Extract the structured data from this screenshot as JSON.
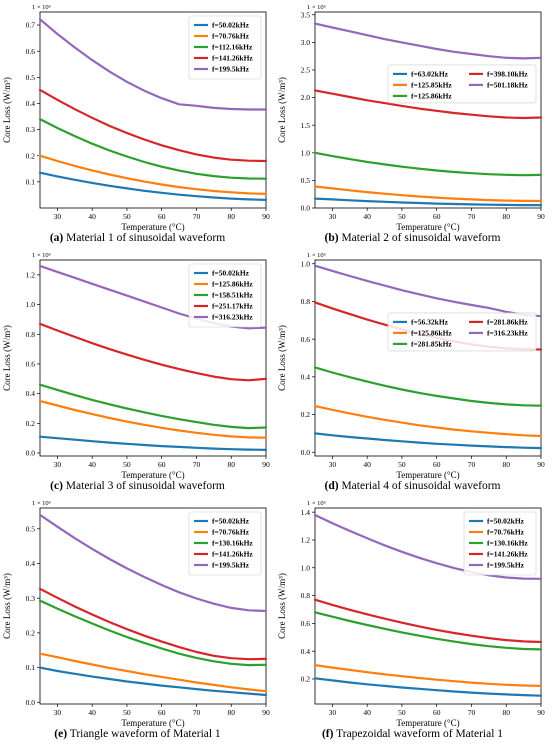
{
  "chart_data": [
    {
      "type": "line",
      "caption_tag": "(a)",
      "caption_text": "Material 1 of sinusoidal waveform",
      "xlabel": "Temperature (°C)",
      "ylabel": "Core Loss (W/m³)",
      "multiplier": "1 × 10⁶",
      "xlim": [
        25,
        90
      ],
      "ylim": [
        0,
        0.75
      ],
      "xticks": [
        30,
        40,
        50,
        60,
        70,
        80,
        90
      ],
      "yticks": [
        0.1,
        0.2,
        0.3,
        0.4,
        0.5,
        0.6,
        0.7
      ],
      "legend_position": "upper-right",
      "legend_cols": 1,
      "x": [
        25,
        30,
        35,
        40,
        45,
        50,
        55,
        60,
        65,
        70,
        75,
        80,
        85,
        90
      ],
      "series": [
        {
          "name": "f=50.02kHz",
          "color": "#1f77b4",
          "values": [
            0.135,
            0.121,
            0.108,
            0.096,
            0.085,
            0.075,
            0.066,
            0.058,
            0.051,
            0.045,
            0.04,
            0.036,
            0.033,
            0.031
          ]
        },
        {
          "name": "f=70.76kHz",
          "color": "#ff7f0e",
          "values": [
            0.2,
            0.18,
            0.161,
            0.144,
            0.128,
            0.114,
            0.101,
            0.09,
            0.08,
            0.072,
            0.065,
            0.06,
            0.056,
            0.054
          ]
        },
        {
          "name": "f=112.16kHz",
          "color": "#2ca02c",
          "values": [
            0.34,
            0.306,
            0.275,
            0.246,
            0.22,
            0.197,
            0.176,
            0.158,
            0.143,
            0.131,
            0.122,
            0.116,
            0.113,
            0.112
          ]
        },
        {
          "name": "f=141.26kHz",
          "color": "#d62728",
          "values": [
            0.452,
            0.414,
            0.378,
            0.345,
            0.314,
            0.287,
            0.262,
            0.24,
            0.221,
            0.205,
            0.193,
            0.185,
            0.181,
            0.18
          ]
        },
        {
          "name": "f=199.5kHz",
          "color": "#9467bd",
          "values": [
            0.722,
            0.666,
            0.614,
            0.566,
            0.522,
            0.483,
            0.449,
            0.42,
            0.397,
            0.391,
            0.383,
            0.379,
            0.377,
            0.377
          ]
        }
      ]
    },
    {
      "type": "line",
      "caption_tag": "(b)",
      "caption_text": "Material 2 of sinusoidal waveform",
      "xlabel": "Temperature (°C)",
      "ylabel": "Core Loss (W/m³)",
      "multiplier": "1 × 10⁶",
      "xlim": [
        25,
        90
      ],
      "ylim": [
        0,
        3.55
      ],
      "xticks": [
        30,
        40,
        50,
        60,
        70,
        80,
        90
      ],
      "yticks": [
        0.0,
        0.5,
        1.0,
        1.5,
        2.0,
        2.5,
        3.0,
        3.5
      ],
      "legend_position": "center-right",
      "legend_cols": 2,
      "x": [
        25,
        30,
        35,
        40,
        45,
        50,
        55,
        60,
        65,
        70,
        75,
        80,
        85,
        90
      ],
      "series": [
        {
          "name": "f=63.02kHz",
          "color": "#1f77b4",
          "values": [
            0.17,
            0.155,
            0.14,
            0.125,
            0.112,
            0.1,
            0.09,
            0.08,
            0.072,
            0.065,
            0.06,
            0.056,
            0.053,
            0.052
          ]
        },
        {
          "name": "f=125.85kHz",
          "color": "#ff7f0e",
          "values": [
            0.39,
            0.355,
            0.32,
            0.288,
            0.259,
            0.232,
            0.209,
            0.188,
            0.17,
            0.155,
            0.143,
            0.134,
            0.128,
            0.126
          ]
        },
        {
          "name": "f=125.86kHz",
          "color": "#2ca02c",
          "values": [
            1.0,
            0.94,
            0.885,
            0.835,
            0.789,
            0.748,
            0.712,
            0.68,
            0.652,
            0.63,
            0.613,
            0.601,
            0.594,
            0.6
          ]
        },
        {
          "name": "f=398.10kHz",
          "color": "#d62728",
          "values": [
            2.13,
            2.07,
            2.01,
            1.95,
            1.9,
            1.85,
            1.8,
            1.76,
            1.72,
            1.69,
            1.66,
            1.64,
            1.63,
            1.64
          ]
        },
        {
          "name": "f=501.18kHz",
          "color": "#9467bd",
          "values": [
            3.34,
            3.27,
            3.2,
            3.13,
            3.06,
            3.0,
            2.94,
            2.88,
            2.83,
            2.79,
            2.75,
            2.72,
            2.71,
            2.72
          ]
        }
      ]
    },
    {
      "type": "line",
      "caption_tag": "(c)",
      "caption_text": "Material 3 of sinusoidal waveform",
      "xlabel": "Temperature (°C)",
      "ylabel": "Core Loss (W/m³)",
      "multiplier": "1 × 10⁶",
      "xlim": [
        25,
        90
      ],
      "ylim": [
        -0.02,
        1.3
      ],
      "xticks": [
        30,
        40,
        50,
        60,
        70,
        80,
        90
      ],
      "yticks": [
        0.0,
        0.2,
        0.4,
        0.6,
        0.8,
        1.0,
        1.2
      ],
      "legend_position": "upper-right",
      "legend_cols": 1,
      "x": [
        25,
        30,
        35,
        40,
        45,
        50,
        55,
        60,
        65,
        70,
        75,
        80,
        85,
        90
      ],
      "series": [
        {
          "name": "f=50.02kHz",
          "color": "#1f77b4",
          "values": [
            0.11,
            0.1,
            0.09,
            0.08,
            0.07,
            0.062,
            0.054,
            0.047,
            0.041,
            0.035,
            0.03,
            0.026,
            0.023,
            0.021
          ]
        },
        {
          "name": "f=125.86kHz",
          "color": "#ff7f0e",
          "values": [
            0.35,
            0.32,
            0.29,
            0.262,
            0.236,
            0.212,
            0.19,
            0.17,
            0.152,
            0.136,
            0.123,
            0.112,
            0.105,
            0.103
          ]
        },
        {
          "name": "f=158.51kHz",
          "color": "#2ca02c",
          "values": [
            0.46,
            0.425,
            0.39,
            0.358,
            0.328,
            0.3,
            0.274,
            0.25,
            0.228,
            0.208,
            0.19,
            0.176,
            0.168,
            0.172
          ]
        },
        {
          "name": "f=251.17kHz",
          "color": "#d62728",
          "values": [
            0.87,
            0.825,
            0.782,
            0.74,
            0.7,
            0.663,
            0.628,
            0.595,
            0.565,
            0.538,
            0.515,
            0.497,
            0.49,
            0.5
          ]
        },
        {
          "name": "f=316.23kHz",
          "color": "#9467bd",
          "values": [
            1.26,
            1.22,
            1.18,
            1.14,
            1.1,
            1.06,
            1.02,
            0.98,
            0.94,
            0.905,
            0.875,
            0.852,
            0.84,
            0.845
          ]
        }
      ]
    },
    {
      "type": "line",
      "caption_tag": "(d)",
      "caption_text": "Material 4 of sinusoidal waveform",
      "xlabel": "Temperature (°C)",
      "ylabel": "Core Loss (W/m³)",
      "multiplier": "1 × 10⁶",
      "xlim": [
        25,
        90
      ],
      "ylim": [
        -0.02,
        1.02
      ],
      "xticks": [
        30,
        40,
        50,
        60,
        70,
        80,
        90
      ],
      "yticks": [
        0.0,
        0.2,
        0.4,
        0.6,
        0.8,
        1.0
      ],
      "legend_position": "center-right",
      "legend_cols": 2,
      "x": [
        25,
        30,
        35,
        40,
        45,
        50,
        55,
        60,
        65,
        70,
        75,
        80,
        85,
        90
      ],
      "series": [
        {
          "name": "f=56.32kHz",
          "color": "#1f77b4",
          "values": [
            0.1,
            0.09,
            0.081,
            0.073,
            0.065,
            0.058,
            0.051,
            0.045,
            0.04,
            0.035,
            0.031,
            0.027,
            0.024,
            0.022
          ]
        },
        {
          "name": "f=125.86kHz",
          "color": "#ff7f0e",
          "values": [
            0.245,
            0.225,
            0.206,
            0.188,
            0.172,
            0.157,
            0.143,
            0.131,
            0.12,
            0.111,
            0.103,
            0.096,
            0.09,
            0.086
          ]
        },
        {
          "name": "f=281.85kHz",
          "color": "#2ca02c",
          "values": [
            0.45,
            0.423,
            0.398,
            0.375,
            0.353,
            0.333,
            0.315,
            0.299,
            0.285,
            0.272,
            0.262,
            0.254,
            0.249,
            0.247
          ]
        },
        {
          "name": "f=281.86kHz",
          "color": "#d62728",
          "values": [
            0.795,
            0.763,
            0.733,
            0.704,
            0.677,
            0.652,
            0.628,
            0.607,
            0.588,
            0.572,
            0.56,
            0.551,
            0.546,
            0.545
          ]
        },
        {
          "name": "f=316.23kHz",
          "color": "#9467bd",
          "values": [
            0.99,
            0.962,
            0.935,
            0.909,
            0.884,
            0.86,
            0.838,
            0.817,
            0.798,
            0.781,
            0.766,
            0.745,
            0.73,
            0.722
          ]
        }
      ]
    },
    {
      "type": "line",
      "caption_tag": "(e)",
      "caption_text": "Triangle waveform of Material 1",
      "xlabel": "Temperature (°C)",
      "ylabel": "Core Loss (W/m³)",
      "multiplier": "1 × 10⁶",
      "xlim": [
        25,
        90
      ],
      "ylim": [
        -0.005,
        0.56
      ],
      "xticks": [
        30,
        40,
        50,
        60,
        70,
        80,
        90
      ],
      "yticks": [
        0.0,
        0.1,
        0.2,
        0.3,
        0.4,
        0.5
      ],
      "legend_position": "upper-right",
      "legend_cols": 1,
      "x": [
        25,
        30,
        35,
        40,
        45,
        50,
        55,
        60,
        65,
        70,
        75,
        80,
        85,
        90
      ],
      "series": [
        {
          "name": "f=50.02kHz",
          "color": "#1f77b4",
          "values": [
            0.1,
            0.09,
            0.082,
            0.074,
            0.067,
            0.06,
            0.054,
            0.048,
            0.043,
            0.038,
            0.033,
            0.029,
            0.025,
            0.021
          ]
        },
        {
          "name": "f=70.76kHz",
          "color": "#ff7f0e",
          "values": [
            0.14,
            0.13,
            0.119,
            0.109,
            0.099,
            0.09,
            0.081,
            0.073,
            0.065,
            0.057,
            0.05,
            0.043,
            0.037,
            0.032
          ]
        },
        {
          "name": "f=130.16kHz",
          "color": "#2ca02c",
          "values": [
            0.293,
            0.27,
            0.248,
            0.227,
            0.207,
            0.188,
            0.171,
            0.155,
            0.14,
            0.128,
            0.118,
            0.111,
            0.107,
            0.108
          ]
        },
        {
          "name": "f=141.26kHz",
          "color": "#d62728",
          "values": [
            0.327,
            0.301,
            0.276,
            0.253,
            0.231,
            0.211,
            0.192,
            0.175,
            0.159,
            0.145,
            0.134,
            0.127,
            0.124,
            0.125
          ]
        },
        {
          "name": "f=199.5kHz",
          "color": "#9467bd",
          "values": [
            0.54,
            0.506,
            0.473,
            0.442,
            0.413,
            0.386,
            0.361,
            0.338,
            0.317,
            0.299,
            0.284,
            0.272,
            0.265,
            0.263
          ]
        }
      ]
    },
    {
      "type": "line",
      "caption_tag": "(f)",
      "caption_text": "Trapezoidal waveform of Material 1",
      "xlabel": "Temperature (°C)",
      "ylabel": "Core Loss (W/m³)",
      "multiplier": "1 × 10⁶",
      "xlim": [
        25,
        90
      ],
      "ylim": [
        0.02,
        1.43
      ],
      "xticks": [
        30,
        40,
        50,
        60,
        70,
        80,
        90
      ],
      "yticks": [
        0.2,
        0.4,
        0.6,
        0.8,
        1.0,
        1.2,
        1.4
      ],
      "legend_position": "upper-right",
      "legend_cols": 1,
      "x": [
        25,
        30,
        35,
        40,
        45,
        50,
        55,
        60,
        65,
        70,
        75,
        80,
        85,
        90
      ],
      "series": [
        {
          "name": "f=50.02kHz",
          "color": "#1f77b4",
          "values": [
            0.205,
            0.19,
            0.175,
            0.162,
            0.15,
            0.139,
            0.129,
            0.119,
            0.11,
            0.102,
            0.095,
            0.089,
            0.084,
            0.08
          ]
        },
        {
          "name": "f=70.76kHz",
          "color": "#ff7f0e",
          "values": [
            0.3,
            0.282,
            0.265,
            0.249,
            0.234,
            0.22,
            0.207,
            0.195,
            0.184,
            0.174,
            0.165,
            0.158,
            0.153,
            0.15
          ]
        },
        {
          "name": "f=130.16kHz",
          "color": "#2ca02c",
          "values": [
            0.68,
            0.648,
            0.617,
            0.588,
            0.561,
            0.535,
            0.511,
            0.489,
            0.469,
            0.451,
            0.436,
            0.424,
            0.416,
            0.413
          ]
        },
        {
          "name": "f=141.26kHz",
          "color": "#d62728",
          "values": [
            0.77,
            0.733,
            0.698,
            0.665,
            0.634,
            0.605,
            0.578,
            0.553,
            0.531,
            0.511,
            0.494,
            0.48,
            0.47,
            0.466
          ]
        },
        {
          "name": "f=199.5kHz",
          "color": "#9467bd",
          "values": [
            1.38,
            1.32,
            1.265,
            1.212,
            1.162,
            1.115,
            1.072,
            1.033,
            0.998,
            0.969,
            0.946,
            0.93,
            0.922,
            0.921
          ]
        }
      ]
    }
  ]
}
